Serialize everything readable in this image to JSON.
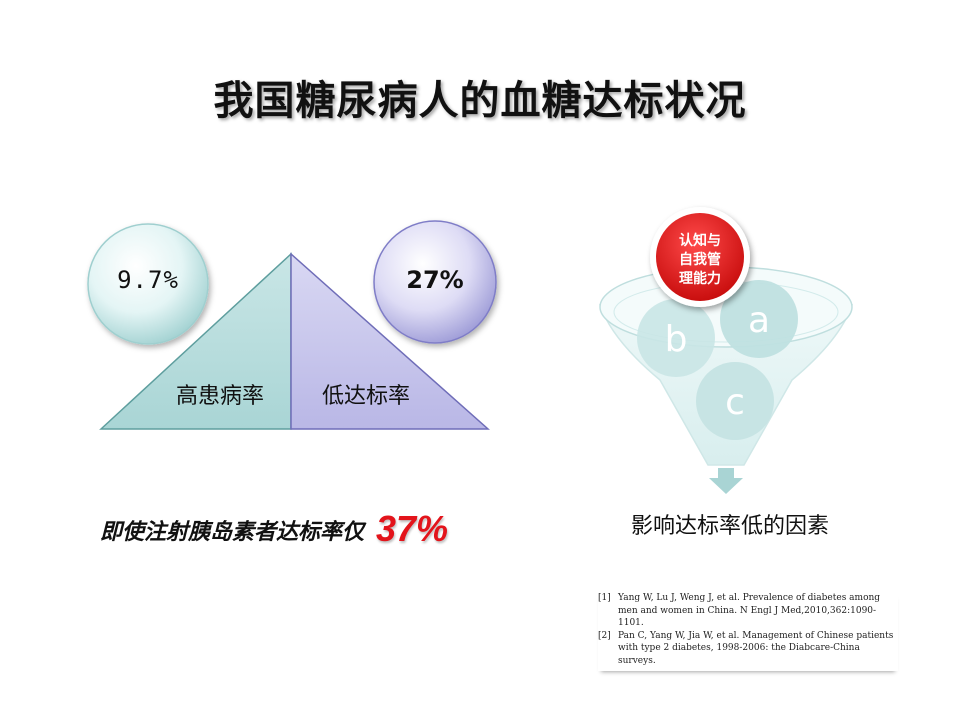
{
  "title": "我国糖尿病人的血糖达标状况",
  "left_panel": {
    "prevalence_bubble": "9.7%",
    "control_bubble": "27%",
    "triangle_left_label": "高患病率",
    "triangle_right_label": "低达标率",
    "insulin_note_text": "即使注射胰岛素者达标率仅",
    "insulin_note_value": "37%"
  },
  "right_panel": {
    "funnel_top_label": [
      "认知与",
      "自我管",
      "理能力"
    ],
    "circle_a": "a",
    "circle_b": "b",
    "circle_c": "c",
    "caption": "影响达标率低的因素"
  },
  "references": [
    {
      "num": "[1]",
      "text": "Yang W, Lu J, Weng J, et al. Prevalence of diabetes among men and women in China. N Engl J Med,2010,362:1090-1101."
    },
    {
      "num": "[2]",
      "text": "Pan C, Yang W, Jia W, et al. Management of Chinese patients with type 2 diabetes, 1998-2006: the Diabcare-China surveys."
    }
  ],
  "colors": {
    "teal_fill": "#b6dddd",
    "lavender_fill": "#c7c6ec",
    "red_accent": "#e3141b",
    "funnel_circle": "#bfe0e0"
  }
}
